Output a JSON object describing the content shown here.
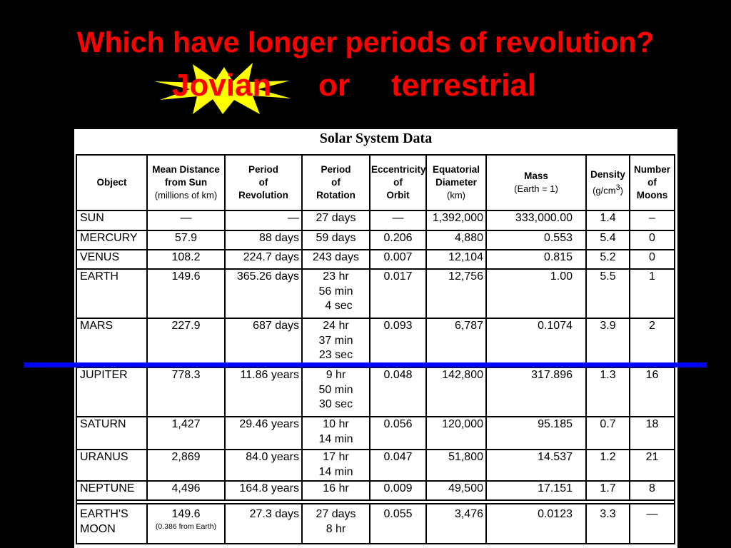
{
  "heading": "Which have longer periods of revolution?",
  "options": {
    "jovian": "Jovian",
    "or": "or",
    "terrestrial": "terrestrial"
  },
  "table_title": "Solar System Data",
  "columns": {
    "object": {
      "l1": "Object"
    },
    "distance": {
      "l1": "Mean Distance",
      "l2": "from Sun",
      "note": "(millions of km)"
    },
    "revolution": {
      "l1": "Period",
      "l2": "of",
      "l3": "Revolution"
    },
    "rotation": {
      "l1": "Period",
      "l2": "of",
      "l3": "Rotation"
    },
    "eccentricity": {
      "l1": "Eccentricity",
      "l2": "of",
      "l3": "Orbit"
    },
    "diameter": {
      "l1": "Equatorial",
      "l2": "Diameter",
      "note": "(km)"
    },
    "mass": {
      "l1": "Mass",
      "note": "(Earth = 1)"
    },
    "density": {
      "l1": "Density",
      "note": "(g/cm",
      "sup": "3",
      "note_end": ")"
    },
    "moons": {
      "l1": "Number",
      "l2": "of",
      "l3": "Moons"
    }
  },
  "rows": [
    {
      "object": "SUN",
      "distance": "—",
      "revolution": "—",
      "rotation": [
        "27 days"
      ],
      "eccentricity": "—",
      "diameter": "1,392,000",
      "mass": "333,000.00",
      "density": "1.4",
      "moons": "–"
    },
    {
      "object": "MERCURY",
      "distance": "57.9",
      "revolution": "88 days",
      "rotation": [
        "59 days"
      ],
      "eccentricity": "0.206",
      "diameter": "4,880",
      "mass": "0.553",
      "density": "5.4",
      "moons": "0"
    },
    {
      "object": "VENUS",
      "distance": "108.2",
      "revolution": "224.7 days",
      "rotation": [
        "243 days"
      ],
      "eccentricity": "0.007",
      "diameter": "12,104",
      "mass": "0.815",
      "density": "5.2",
      "moons": "0"
    },
    {
      "object": "EARTH",
      "distance": "149.6",
      "revolution": "365.26 days",
      "rotation": [
        "23 hr",
        "56 min",
        "4 sec"
      ],
      "eccentricity": "0.017",
      "diameter": "12,756",
      "mass": "1.00",
      "density": "5.5",
      "moons": "1"
    },
    {
      "object": "MARS",
      "distance": "227.9",
      "revolution": "687 days",
      "rotation": [
        "24 hr",
        "37 min",
        "23 sec"
      ],
      "eccentricity": "0.093",
      "diameter": "6,787",
      "mass": "0.1074",
      "density": "3.9",
      "moons": "2"
    },
    {
      "object": "JUPITER",
      "distance": "778.3",
      "revolution": "11.86 years",
      "rotation": [
        "9 hr",
        "50 min",
        "30 sec"
      ],
      "eccentricity": "0.048",
      "diameter": "142,800",
      "mass": "317.896",
      "density": "1.3",
      "moons": "16"
    },
    {
      "object": "SATURN",
      "distance": "1,427",
      "revolution": "29.46 years",
      "rotation": [
        "10 hr",
        "14 min"
      ],
      "eccentricity": "0.056",
      "diameter": "120,000",
      "mass": "95.185",
      "density": "0.7",
      "moons": "18"
    },
    {
      "object": "URANUS",
      "distance": "2,869",
      "revolution": "84.0 years",
      "rotation": [
        "17 hr",
        "14 min"
      ],
      "eccentricity": "0.047",
      "diameter": "51,800",
      "mass": "14.537",
      "density": "1.2",
      "moons": "21"
    },
    {
      "object": "NEPTUNE",
      "distance": "4,496",
      "revolution": "164.8 years",
      "rotation": [
        "16 hr"
      ],
      "eccentricity": "0.009",
      "diameter": "49,500",
      "mass": "17.151",
      "density": "1.7",
      "moons": "8"
    }
  ],
  "moon_row": {
    "object": [
      "EARTH'S",
      "MOON"
    ],
    "distance": "149.6",
    "distance_note": "(0.386 from Earth)",
    "revolution": "27.3 days",
    "rotation": [
      "27 days",
      "8 hr"
    ],
    "eccentricity": "0.055",
    "diameter": "3,476",
    "mass": "0.0123",
    "density": "3.3",
    "moons": "—"
  },
  "colors": {
    "background": "#000000",
    "heading": "#ff0000",
    "burst": "#ffff00",
    "divider": "#0000ff"
  },
  "icons": {
    "highlight": "starburst-icon"
  }
}
